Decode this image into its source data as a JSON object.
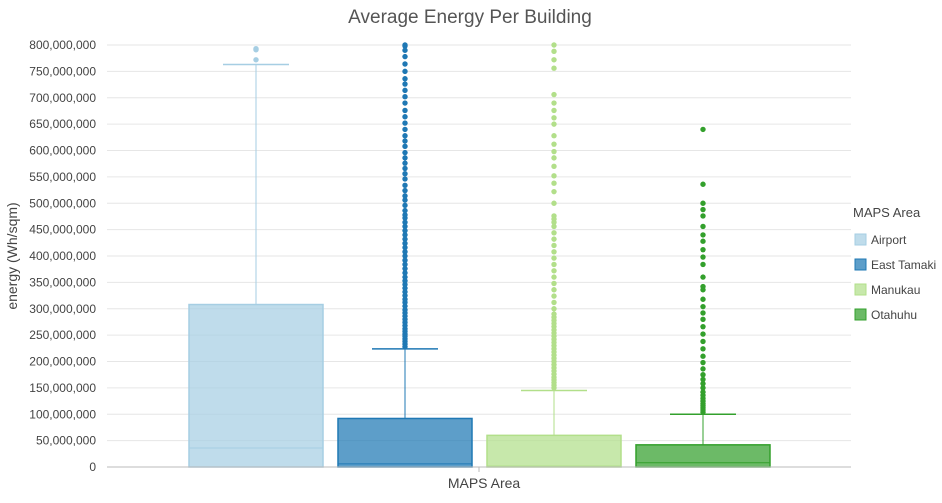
{
  "chart_data": {
    "type": "box",
    "title": "Average Energy Per Building",
    "xlabel": "MAPS Area",
    "ylabel": "energy (Wh/sqm)",
    "categories": [
      "MAPS Area"
    ],
    "ylim": [
      0,
      800000000
    ],
    "yticks": [
      0,
      50000000,
      100000000,
      150000000,
      200000000,
      250000000,
      300000000,
      350000000,
      400000000,
      450000000,
      500000000,
      550000000,
      600000000,
      650000000,
      700000000,
      750000000,
      800000000
    ],
    "ytick_labels": [
      "0",
      "50,000,000",
      "100,000,000",
      "150,000,000",
      "200,000,000",
      "250,000,000",
      "300,000,000",
      "350,000,000",
      "400,000,000",
      "450,000,000",
      "500,000,000",
      "550,000,000",
      "600,000,000",
      "650,000,000",
      "700,000,000",
      "750,000,000",
      "800,000,000"
    ],
    "grid": true,
    "legend": {
      "title": "MAPS Area",
      "position": "right"
    },
    "series": [
      {
        "name": "Airport",
        "color": "#a6cee3",
        "q1": 0,
        "median": 36000000,
        "q3": 308000000,
        "whisker_low": 0,
        "whisker_high": 763000000,
        "outliers": [
          772000000,
          791000000,
          793000000
        ]
      },
      {
        "name": "East Tamaki",
        "color": "#1f78b4",
        "q1": 0,
        "median": 6000000,
        "q3": 92000000,
        "whisker_low": 0,
        "whisker_high": 224000000,
        "outliers": [
          228000000,
          233000000,
          238000000,
          243000000,
          248000000,
          252000000,
          257000000,
          262000000,
          268000000,
          274000000,
          280000000,
          286000000,
          292000000,
          298000000,
          305000000,
          312000000,
          318000000,
          325000000,
          332000000,
          339000000,
          346000000,
          353000000,
          360000000,
          368000000,
          376000000,
          384000000,
          392000000,
          400000000,
          408000000,
          416000000,
          424000000,
          432000000,
          440000000,
          448000000,
          456000000,
          464000000,
          472000000,
          478000000,
          486000000,
          496000000,
          506000000,
          514000000,
          524000000,
          534000000,
          546000000,
          556000000,
          566000000,
          576000000,
          586000000,
          596000000,
          608000000,
          618000000,
          628000000,
          640000000,
          652000000,
          664000000,
          676000000,
          690000000,
          702000000,
          714000000,
          726000000,
          736000000,
          750000000,
          764000000,
          778000000,
          790000000,
          798000000,
          800000000
        ]
      },
      {
        "name": "Manukau",
        "color": "#b2df8a",
        "q1": 0,
        "median": 2000000,
        "q3": 60000000,
        "whisker_low": 0,
        "whisker_high": 145000000,
        "outliers": [
          150000000,
          155000000,
          160000000,
          165000000,
          170000000,
          176000000,
          182000000,
          188000000,
          194000000,
          200000000,
          206000000,
          212000000,
          218000000,
          224000000,
          230000000,
          236000000,
          242000000,
          248000000,
          254000000,
          260000000,
          266000000,
          272000000,
          278000000,
          284000000,
          290000000,
          300000000,
          312000000,
          324000000,
          336000000,
          348000000,
          360000000,
          372000000,
          384000000,
          396000000,
          408000000,
          420000000,
          432000000,
          444000000,
          456000000,
          464000000,
          470000000,
          476000000,
          500000000,
          522000000,
          538000000,
          552000000,
          570000000,
          586000000,
          598000000,
          612000000,
          628000000,
          650000000,
          662000000,
          676000000,
          690000000,
          706000000,
          756000000,
          772000000,
          788000000,
          800000000
        ]
      },
      {
        "name": "Otahuhu",
        "color": "#33a02c",
        "q1": 0,
        "median": 8000000,
        "q3": 42000000,
        "whisker_low": 0,
        "whisker_high": 100000000,
        "outliers": [
          104000000,
          108000000,
          112000000,
          116000000,
          120000000,
          125000000,
          130000000,
          136000000,
          142000000,
          150000000,
          158000000,
          166000000,
          175000000,
          186000000,
          198000000,
          210000000,
          224000000,
          238000000,
          252000000,
          266000000,
          280000000,
          292000000,
          304000000,
          318000000,
          336000000,
          342000000,
          360000000,
          384000000,
          398000000,
          412000000,
          428000000,
          440000000,
          456000000,
          476000000,
          488000000,
          500000000,
          536000000,
          640000000
        ]
      }
    ]
  }
}
